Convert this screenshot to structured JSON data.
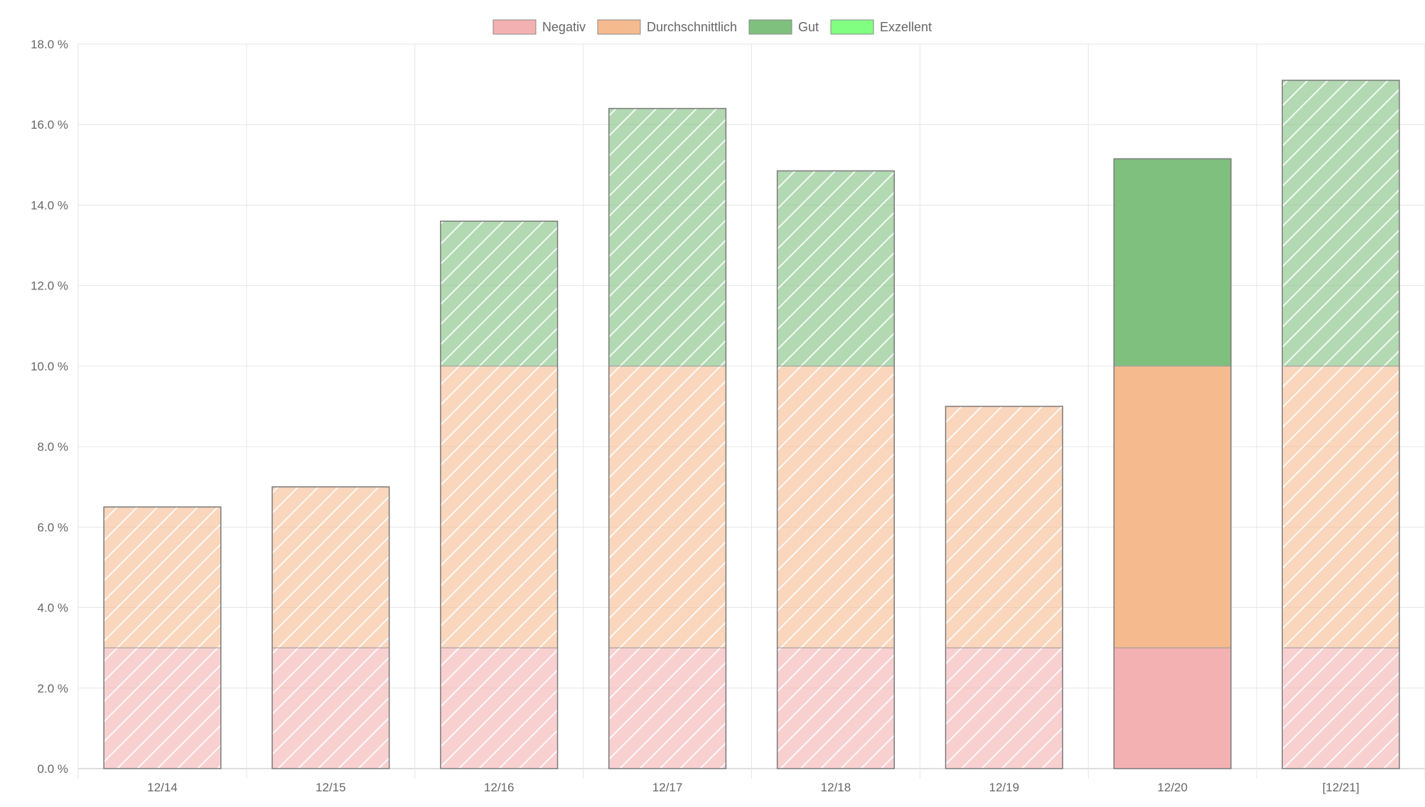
{
  "chart_data": {
    "type": "bar",
    "stacked": true,
    "categories": [
      "12/14",
      "12/15",
      "12/16",
      "12/17",
      "12/18",
      "12/19",
      "12/20",
      "[12/21]"
    ],
    "series": [
      {
        "name": "Negativ",
        "color": "#f4b1b1",
        "values": [
          3.0,
          3.0,
          3.0,
          3.0,
          3.0,
          3.0,
          3.0,
          3.0
        ]
      },
      {
        "name": "Durchschnittlich",
        "color": "#f5bb8f",
        "values": [
          3.5,
          4.0,
          7.0,
          7.0,
          7.0,
          6.0,
          7.0,
          7.0
        ]
      },
      {
        "name": "Gut",
        "color": "#7fc07f",
        "values": [
          0,
          0,
          3.6,
          6.4,
          4.85,
          0,
          5.15,
          7.1
        ]
      },
      {
        "name": "Exzellent",
        "color": "#80ff80",
        "values": [
          0,
          0,
          0,
          0,
          0,
          0,
          0,
          0
        ]
      }
    ],
    "highlighted_category_index": 6,
    "ylim": [
      0,
      18
    ],
    "y_ticks": [
      "0.0 %",
      "2.0 %",
      "4.0 %",
      "6.0 %",
      "8.0 %",
      "10.0 %",
      "12.0 %",
      "14.0 %",
      "16.0 %",
      "18.0 %"
    ],
    "grid": true,
    "legend_position": "top-center",
    "xlabel": "",
    "ylabel": "",
    "title": ""
  }
}
